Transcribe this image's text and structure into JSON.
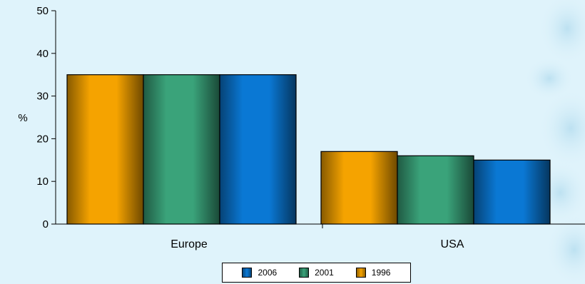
{
  "chart_data": {
    "type": "bar",
    "categories": [
      "Europe",
      "USA"
    ],
    "series": [
      {
        "name": "1996",
        "values": [
          35,
          17
        ],
        "color": "#f5a300"
      },
      {
        "name": "2001",
        "values": [
          35,
          16
        ],
        "color": "#3aa37a"
      },
      {
        "name": "2006",
        "values": [
          35,
          15
        ],
        "color": "#0a78d4"
      }
    ],
    "ylabel": "%",
    "ylim": [
      0,
      50
    ],
    "yticks": [
      0,
      10,
      20,
      30,
      40,
      50
    ],
    "grid": false,
    "legend": {
      "placement": "bottom",
      "order": [
        "2006",
        "2001",
        "1996"
      ]
    }
  }
}
